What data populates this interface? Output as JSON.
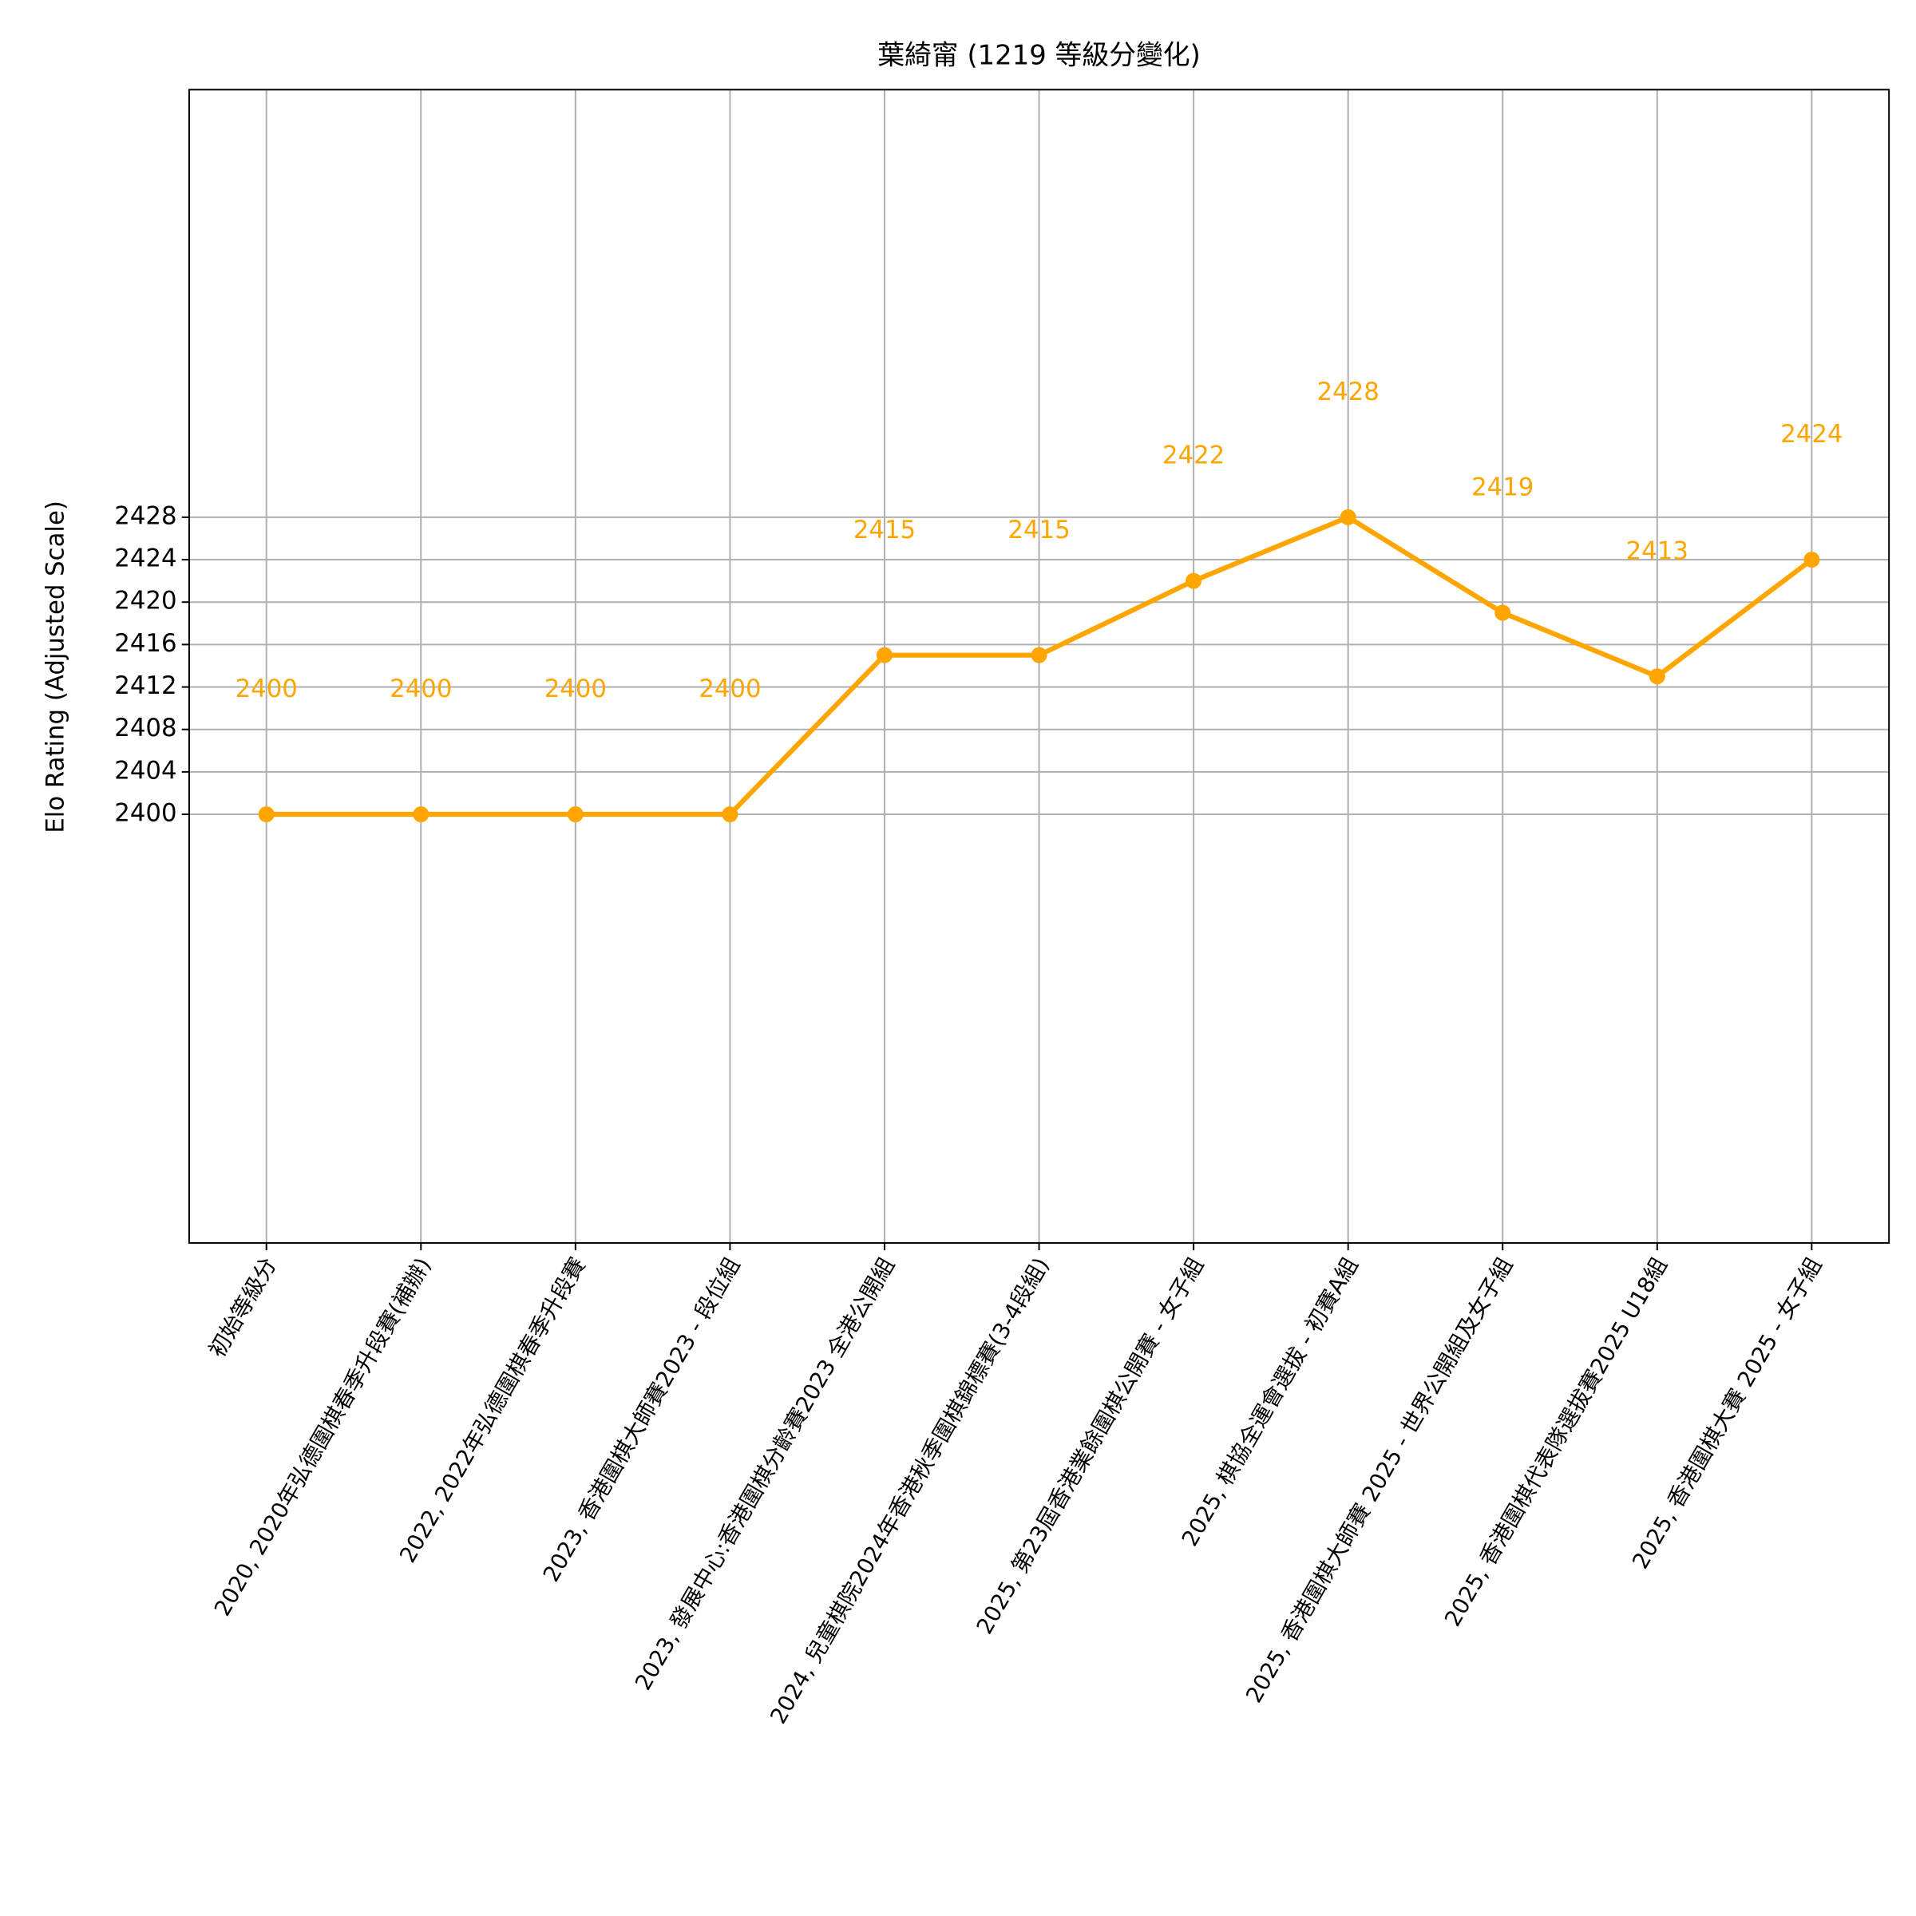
{
  "chart_data": {
    "type": "line",
    "title": "葉綺甯 (1219 等級分變化)",
    "y_label": "Elo Rating (Adjusted Scale)",
    "categories": [
      "初始等級分",
      "2020, 2020年弘德圍棋春季升段賽(補辦)",
      "2022, 2022年弘德圍棋春季升段賽",
      "2023, 香港圍棋大師賽2023 - 段位組",
      "2023, 發展中心:香港圍棋分齡賽2023 全港公開組",
      "2024, 兒童棋院2024年香港秋季圍棋錦標賽(3-4段組)",
      "2025, 第23屆香港業餘圍棋公開賽 - 女子組",
      "2025, 棋協全運會選拔 - 初賽A組",
      "2025, 香港圍棋大師賽 2025 - 世界公開組及女子組",
      "2025, 香港圍棋代表隊選拔賽2025 U18組",
      "2025, 香港圍棋大賽 2025 - 女子組"
    ],
    "values": [
      2400,
      2400,
      2400,
      2400,
      2415,
      2415,
      2422,
      2428,
      2419,
      2413,
      2424
    ],
    "color": "#ffa500",
    "ylim": [
      2359.6,
      2468.3
    ],
    "yticks": [
      2400,
      2404,
      2408,
      2412,
      2416,
      2420,
      2424,
      2428
    ],
    "grid": true
  }
}
